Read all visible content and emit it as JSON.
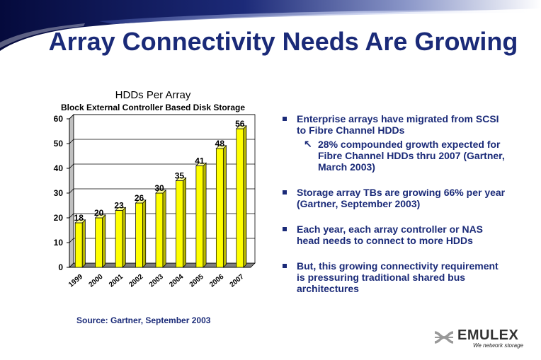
{
  "slide": {
    "title": "Array Connectivity Needs Are Growing",
    "source": "Source: Gartner, September 2003"
  },
  "chart_data": {
    "type": "bar",
    "title": "HDDs Per Array",
    "subtitle": "Block External Controller Based Disk Storage",
    "categories": [
      "1999",
      "2000",
      "2001",
      "2002",
      "2003",
      "2004",
      "2005",
      "2006",
      "2007"
    ],
    "values": [
      18,
      20,
      23,
      26,
      30,
      35,
      41,
      48,
      56
    ],
    "ylim": [
      0,
      60
    ],
    "yticks": [
      0,
      10,
      20,
      30,
      40,
      50,
      60
    ],
    "grid": true,
    "bar_color": "#ffff00"
  },
  "bullets": [
    {
      "text": "Enterprise arrays have migrated from SCSI to Fibre Channel HDDs",
      "sub": "28% compounded growth expected for Fibre Channel HDDs thru 2007 (Gartner, March 2003)"
    },
    {
      "text": "Storage array TBs are growing 66% per year (Gartner, September 2003)"
    },
    {
      "text": "Each year, each array controller or NAS head needs to connect to more HDDs"
    },
    {
      "text": "But, this growing connectivity requirement is pressuring traditional shared bus architectures"
    }
  ],
  "logo": {
    "name": "EMULEX",
    "tagline": "We network storage"
  },
  "colors": {
    "title": "#1a2a78",
    "banner_dark": "#0a1450",
    "banner_light": "#6a78b0"
  }
}
